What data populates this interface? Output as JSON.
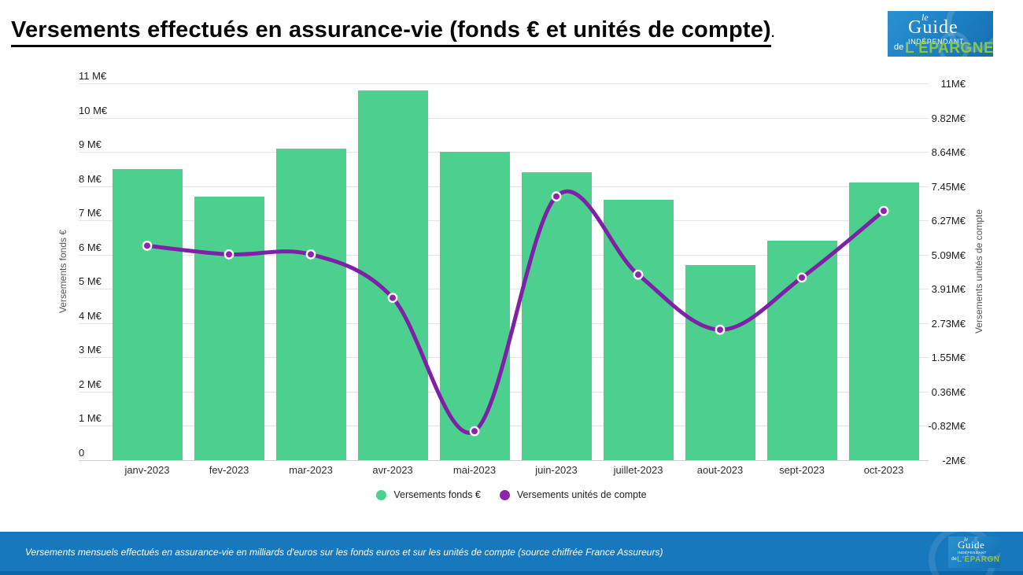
{
  "title": {
    "text": "Versements effectués en assurance-vie (fonds € et unités de compte)",
    "suffix": "."
  },
  "logo": {
    "le": "le",
    "guide": "Guide",
    "independant": "INDÉPENDANT",
    "de": "de",
    "epargne": "L'ÉPARGNE"
  },
  "chart_data": {
    "type": "bar+line",
    "categories": [
      "janv-2023",
      "fev-2023",
      "mar-2023",
      "avr-2023",
      "mai-2023",
      "juin-2023",
      "juillet-2023",
      "aout-2023",
      "sept-2023",
      "oct-2023"
    ],
    "series": [
      {
        "name": "Versements fonds €",
        "type": "bar",
        "axis": "left",
        "color": "#4dcf8d",
        "values": [
          8.5,
          7.7,
          9.1,
          10.8,
          9.0,
          8.4,
          7.6,
          5.7,
          6.4,
          8.1
        ]
      },
      {
        "name": "Versements unités de compte",
        "type": "line",
        "axis": "right",
        "color": "#7f21a8",
        "marker_color": "#8e24aa",
        "values": [
          5.4,
          5.1,
          5.1,
          3.6,
          -1.0,
          7.1,
          4.4,
          2.5,
          4.3,
          6.6
        ]
      }
    ],
    "left_axis": {
      "label": "Versements fonds €",
      "min": 0,
      "max": 11,
      "ticks": [
        "11 M€",
        "10 M€",
        "9 M€",
        "8 M€",
        "7 M€",
        "6 M€",
        "5 M€",
        "4 M€",
        "3 M€",
        "2 M€",
        "1 M€",
        "0"
      ]
    },
    "right_axis": {
      "label": "Versements unités de compte",
      "min": -2,
      "max": 11,
      "ticks": [
        "11M€",
        "9.82M€",
        "8.64M€",
        "7.45M€",
        "6.27M€",
        "5.09M€",
        "3.91M€",
        "2.73M€",
        "1.55M€",
        "0.36M€",
        "-0.82M€",
        "-2M€"
      ]
    },
    "grid": true,
    "legend_position": "bottom",
    "units": "milliards d'euros"
  },
  "legend": [
    {
      "label": "Versements fonds €",
      "color": "#4dcf8d"
    },
    {
      "label": "Versements unités de compte",
      "color": "#8e24aa"
    }
  ],
  "footer": {
    "caption": "Versements mensuels effectués en assurance-vie en milliards d'euros sur les fonds euros et sur les unités de compte (source chiffrée France Assureurs)",
    "bg_color": "#1878be"
  }
}
